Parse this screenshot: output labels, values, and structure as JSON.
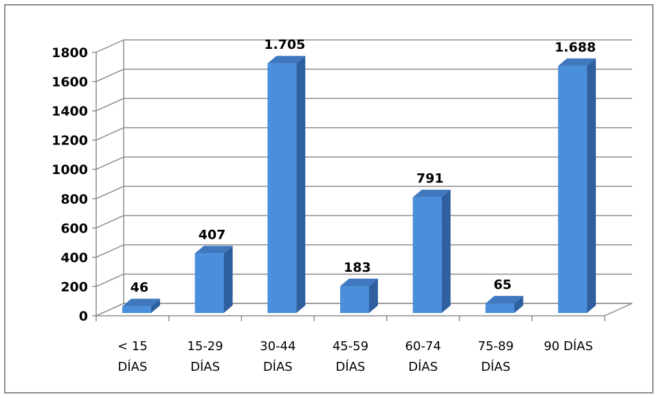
{
  "chart_data": {
    "type": "bar",
    "categories": [
      [
        "< 15",
        "DÍAS"
      ],
      [
        "15-29",
        "DÍAS"
      ],
      [
        "30-44",
        "DÍAS"
      ],
      [
        "45-59",
        "DÍAS"
      ],
      [
        "60-74",
        "DÍAS"
      ],
      [
        "75-89",
        "DÍAS"
      ],
      [
        "90 DÍAS"
      ]
    ],
    "values": [
      46,
      407,
      1705,
      183,
      791,
      65,
      1688
    ],
    "data_labels": [
      "46",
      "407",
      "1.705",
      "183",
      "791",
      "65",
      "1.688"
    ],
    "yticks": [
      0,
      200,
      400,
      600,
      800,
      1000,
      1200,
      1400,
      1600,
      1800
    ],
    "ylim": [
      0,
      1800
    ],
    "grid": true,
    "legend": "none",
    "three_d": true,
    "colors": {
      "bar_front": "#4a8fdc",
      "bar_side": "#2e5f9e",
      "bar_top": "#3f78bf",
      "grid": "#8c8c8c",
      "frame": "#8c8c8c"
    }
  }
}
